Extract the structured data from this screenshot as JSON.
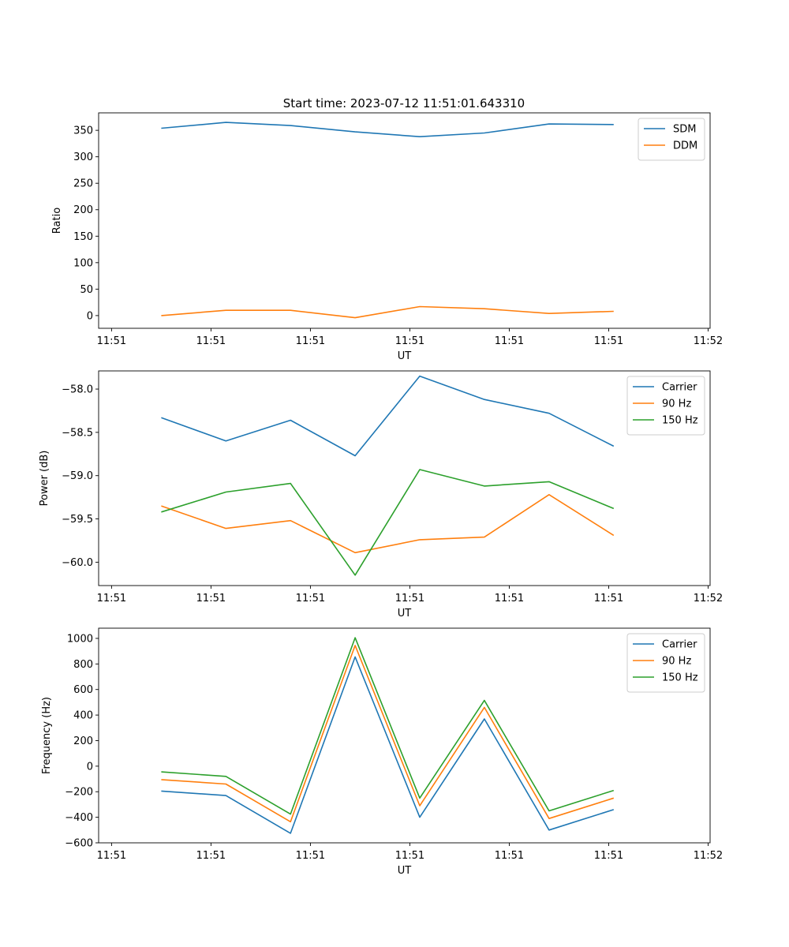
{
  "figure_title": "Start time: 2023-07-12 11:51:01.643310",
  "colors": {
    "blue": "#1f77b4",
    "orange": "#ff7f0e",
    "green": "#2ca02c"
  },
  "chart_data": [
    {
      "type": "line",
      "title": "Start time: 2023-07-12 11:51:01.643310",
      "xlabel": "UT",
      "ylabel": "Ratio",
      "x_tick_labels": [
        "11:51",
        "11:51",
        "11:51",
        "11:51",
        "11:51",
        "11:51",
        "11:52"
      ],
      "x_ticks": [
        0,
        1,
        2,
        3,
        4,
        5,
        6
      ],
      "xlim": [
        -0.13,
        6.02
      ],
      "x": [
        0.5,
        1.15,
        1.8,
        2.45,
        3.1,
        3.75,
        4.4,
        5.05
      ],
      "ylim": [
        -24,
        383
      ],
      "yticks": [
        0,
        50,
        100,
        150,
        200,
        250,
        300,
        350
      ],
      "legend_loc": "upper right",
      "series": [
        {
          "name": "SDM",
          "color": "#1f77b4",
          "values": [
            354,
            365,
            359,
            347,
            338,
            345,
            362,
            361
          ]
        },
        {
          "name": "DDM",
          "color": "#ff7f0e",
          "values": [
            0,
            10,
            10,
            -4,
            17,
            13,
            4,
            8
          ]
        }
      ]
    },
    {
      "type": "line",
      "title": "",
      "xlabel": "UT",
      "ylabel": "Power (dB)",
      "x_tick_labels": [
        "11:51",
        "11:51",
        "11:51",
        "11:51",
        "11:51",
        "11:51",
        "11:52"
      ],
      "x_ticks": [
        0,
        1,
        2,
        3,
        4,
        5,
        6
      ],
      "xlim": [
        -0.13,
        6.02
      ],
      "x": [
        0.5,
        1.15,
        1.8,
        2.45,
        3.1,
        3.75,
        4.4,
        5.05
      ],
      "ylim": [
        -60.27,
        -57.79
      ],
      "yticks": [
        -60.0,
        -59.5,
        -59.0,
        -58.5,
        -58.0
      ],
      "ytick_labels": [
        "−60.0",
        "−59.5",
        "−59.0",
        "−58.5",
        "−58.0"
      ],
      "legend_loc": "upper right",
      "series": [
        {
          "name": "Carrier",
          "color": "#1f77b4",
          "values": [
            -58.33,
            -58.6,
            -58.36,
            -58.77,
            -57.85,
            -58.12,
            -58.28,
            -58.66
          ]
        },
        {
          "name": "90 Hz",
          "color": "#ff7f0e",
          "values": [
            -59.35,
            -59.61,
            -59.52,
            -59.89,
            -59.74,
            -59.71,
            -59.22,
            -59.69
          ]
        },
        {
          "name": "150 Hz",
          "color": "#2ca02c",
          "values": [
            -59.42,
            -59.19,
            -59.09,
            -60.15,
            -58.93,
            -59.12,
            -59.07,
            -59.38
          ]
        }
      ]
    },
    {
      "type": "line",
      "title": "",
      "xlabel": "UT",
      "ylabel": "Frequency (Hz)",
      "x_tick_labels": [
        "11:51",
        "11:51",
        "11:51",
        "11:51",
        "11:51",
        "11:51",
        "11:52"
      ],
      "x_ticks": [
        0,
        1,
        2,
        3,
        4,
        5,
        6
      ],
      "xlim": [
        -0.13,
        6.02
      ],
      "x": [
        0.5,
        1.15,
        1.8,
        2.45,
        3.1,
        3.75,
        4.4,
        5.05
      ],
      "ylim": [
        -600,
        1080
      ],
      "yticks": [
        -600,
        -400,
        -200,
        0,
        200,
        400,
        600,
        800,
        1000
      ],
      "ytick_labels": [
        "−600",
        "−400",
        "−200",
        "0",
        "200",
        "400",
        "600",
        "800",
        "1000"
      ],
      "legend_loc": "upper right",
      "series": [
        {
          "name": "Carrier",
          "color": "#1f77b4",
          "values": [
            -195,
            -230,
            -525,
            855,
            -400,
            370,
            -500,
            -340
          ]
        },
        {
          "name": "90 Hz",
          "color": "#ff7f0e",
          "values": [
            -105,
            -140,
            -435,
            945,
            -310,
            460,
            -410,
            -250
          ]
        },
        {
          "name": "150 Hz",
          "color": "#2ca02c",
          "values": [
            -45,
            -80,
            -375,
            1005,
            -250,
            515,
            -350,
            -190
          ]
        }
      ]
    }
  ]
}
